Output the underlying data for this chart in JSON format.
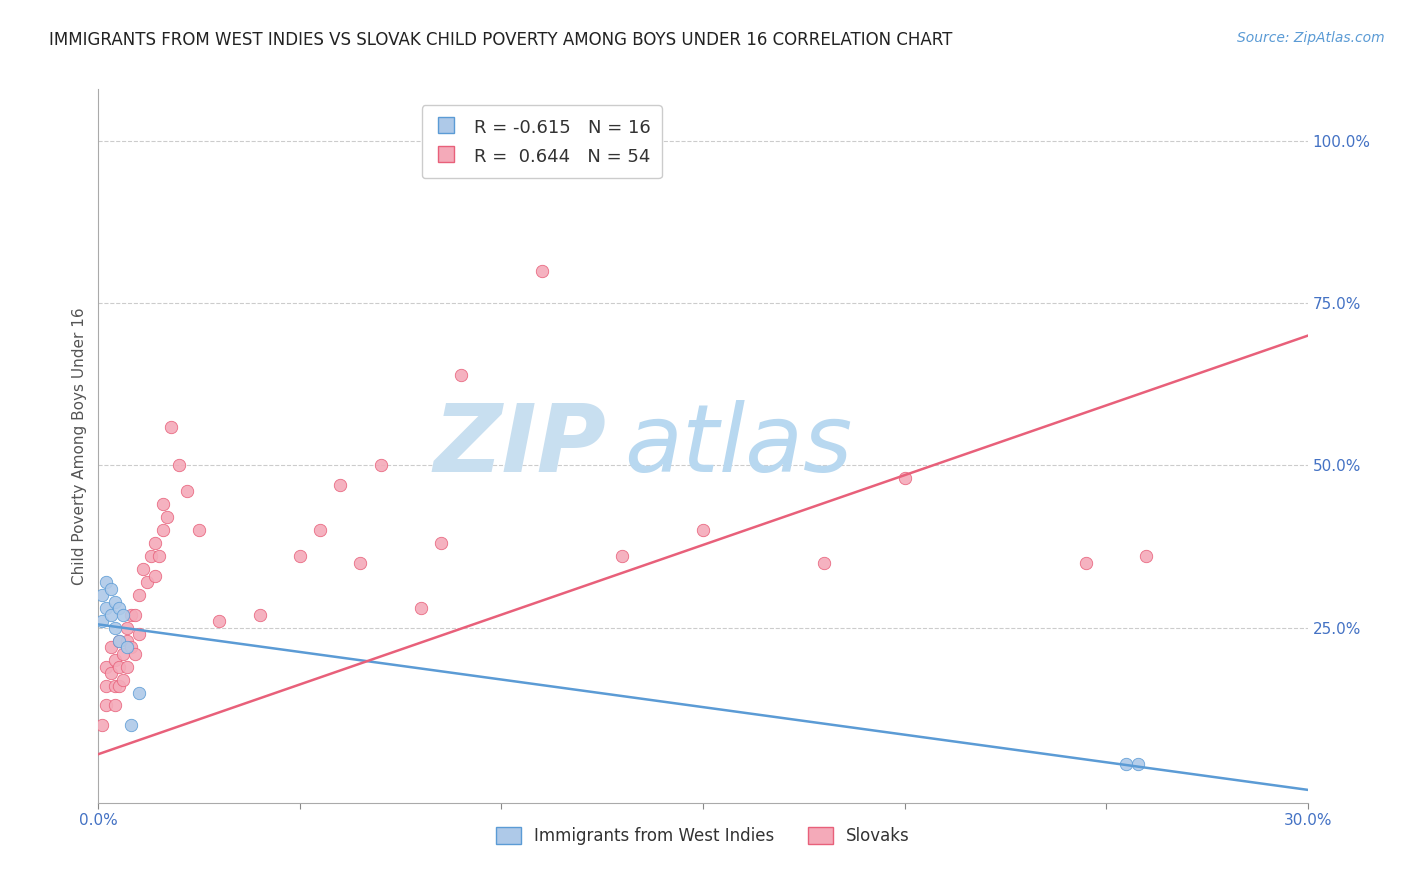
{
  "title": "IMMIGRANTS FROM WEST INDIES VS SLOVAK CHILD POVERTY AMONG BOYS UNDER 16 CORRELATION CHART",
  "source": "Source: ZipAtlas.com",
  "ylabel_left": "Child Poverty Among Boys Under 16",
  "x_min": 0.0,
  "x_max": 0.3,
  "y_min": -0.02,
  "y_max": 1.08,
  "right_yticks": [
    0.25,
    0.5,
    0.75,
    1.0
  ],
  "right_yticklabels": [
    "25.0%",
    "50.0%",
    "75.0%",
    "100.0%"
  ],
  "xticks": [
    0.0,
    0.05,
    0.1,
    0.15,
    0.2,
    0.25,
    0.3
  ],
  "legend_R1": "R = -0.615",
  "legend_N1": "N = 16",
  "legend_R2": "R =  0.644",
  "legend_N2": "N = 54",
  "blue_scatter_x": [
    0.001,
    0.001,
    0.002,
    0.002,
    0.003,
    0.003,
    0.004,
    0.004,
    0.005,
    0.005,
    0.006,
    0.007,
    0.008,
    0.01,
    0.255,
    0.258
  ],
  "blue_scatter_y": [
    0.26,
    0.3,
    0.28,
    0.32,
    0.27,
    0.31,
    0.25,
    0.29,
    0.28,
    0.23,
    0.27,
    0.22,
    0.1,
    0.15,
    0.04,
    0.04
  ],
  "pink_scatter_x": [
    0.001,
    0.002,
    0.002,
    0.002,
    0.003,
    0.003,
    0.004,
    0.004,
    0.004,
    0.005,
    0.005,
    0.005,
    0.006,
    0.006,
    0.007,
    0.007,
    0.007,
    0.008,
    0.008,
    0.009,
    0.009,
    0.01,
    0.01,
    0.011,
    0.012,
    0.013,
    0.014,
    0.014,
    0.015,
    0.016,
    0.016,
    0.017,
    0.018,
    0.02,
    0.022,
    0.025,
    0.03,
    0.04,
    0.05,
    0.055,
    0.06,
    0.065,
    0.07,
    0.08,
    0.085,
    0.09,
    0.1,
    0.11,
    0.13,
    0.15,
    0.18,
    0.2,
    0.245,
    0.26
  ],
  "pink_scatter_y": [
    0.1,
    0.16,
    0.13,
    0.19,
    0.18,
    0.22,
    0.13,
    0.16,
    0.2,
    0.19,
    0.16,
    0.23,
    0.17,
    0.21,
    0.19,
    0.23,
    0.25,
    0.22,
    0.27,
    0.21,
    0.27,
    0.24,
    0.3,
    0.34,
    0.32,
    0.36,
    0.33,
    0.38,
    0.36,
    0.4,
    0.44,
    0.42,
    0.56,
    0.5,
    0.46,
    0.4,
    0.26,
    0.27,
    0.36,
    0.4,
    0.47,
    0.35,
    0.5,
    0.28,
    0.38,
    0.64,
    1.03,
    0.8,
    0.36,
    0.4,
    0.35,
    0.48,
    0.35,
    0.36
  ],
  "blue_line_x": [
    0.0,
    0.3
  ],
  "blue_line_y": [
    0.255,
    0.0
  ],
  "pink_line_x": [
    0.0,
    0.3
  ],
  "pink_line_y": [
    0.055,
    0.7
  ],
  "blue_color": "#5b9bd5",
  "pink_color": "#e8607a",
  "blue_scatter_color": "#aec9e8",
  "pink_scatter_color": "#f4aab9",
  "watermark_zip": "ZIP",
  "watermark_atlas": "atlas",
  "watermark_color": "#cfe2f0",
  "background_color": "#ffffff",
  "grid_color": "#cccccc",
  "title_fontsize": 12,
  "axis_label_fontsize": 11,
  "tick_fontsize": 11,
  "source_fontsize": 10,
  "marker_size": 80,
  "line_width": 1.8
}
